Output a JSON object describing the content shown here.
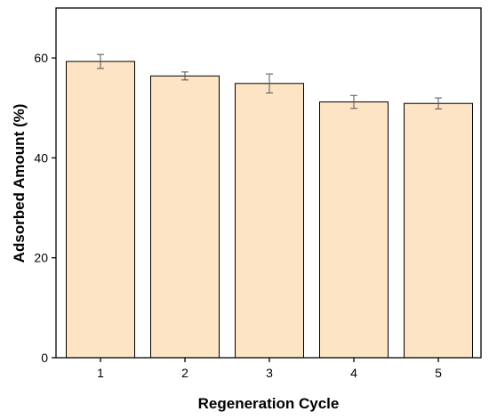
{
  "chart_data": {
    "type": "bar",
    "categories": [
      "1",
      "2",
      "3",
      "4",
      "5"
    ],
    "values": [
      59.3,
      56.4,
      54.9,
      51.2,
      50.9
    ],
    "error": [
      1.4,
      0.8,
      1.9,
      1.3,
      1.1
    ],
    "xlabel": "Regeneration Cycle",
    "ylabel": "Adsorbed Amount (%)",
    "ylim": [
      0,
      70
    ],
    "yticks": [
      "0",
      "20",
      "40",
      "60"
    ],
    "grid": false,
    "legend": "none",
    "bar_color": "#FDE4C4",
    "bar_edge_color": "#000000",
    "error_bar_color": "#555555"
  }
}
